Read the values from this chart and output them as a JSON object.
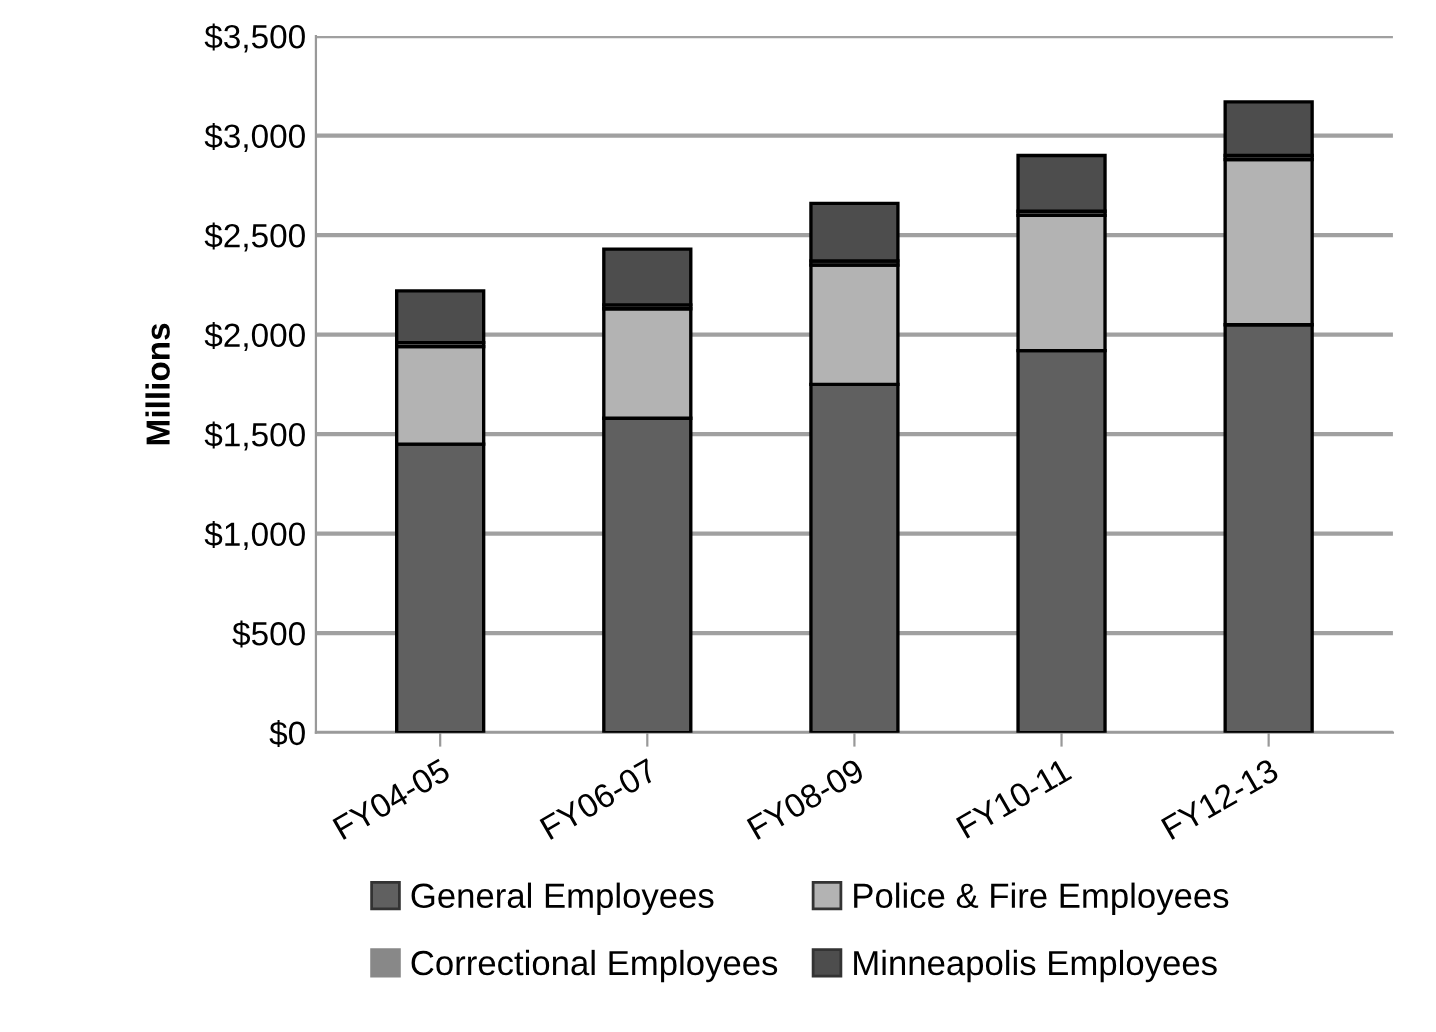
{
  "chart_data": {
    "type": "bar",
    "stacked": true,
    "ylabel": "Millions",
    "categories": [
      "FY04-05",
      "FY06-07",
      "FY08-09",
      "FY10-11",
      "FY12-13"
    ],
    "series": [
      {
        "name": "General Employees",
        "color": "#606060",
        "values": [
          1450,
          1580,
          1750,
          1920,
          2050
        ]
      },
      {
        "name": "Police & Fire Employees",
        "color": "#b3b3b3",
        "values": [
          490,
          550,
          600,
          680,
          830
        ]
      },
      {
        "name": "Correctional Employees",
        "color": "#888888",
        "values": [
          20,
          20,
          20,
          20,
          20
        ]
      },
      {
        "name": "Minneapolis Employees",
        "color": "#4d4d4d",
        "values": [
          260,
          280,
          290,
          280,
          270
        ]
      }
    ],
    "ylim": [
      0,
      3500
    ],
    "yticks": [
      {
        "value": 0,
        "label": "$0"
      },
      {
        "value": 500,
        "label": "$500"
      },
      {
        "value": 1000,
        "label": "$1,000"
      },
      {
        "value": 1500,
        "label": "$1,500"
      },
      {
        "value": 2000,
        "label": "$2,000"
      },
      {
        "value": 2500,
        "label": "$2,500"
      },
      {
        "value": 3000,
        "label": "$3,000"
      },
      {
        "value": 3500,
        "label": "$3,500"
      }
    ],
    "grid": "y",
    "legend": "bottom"
  }
}
